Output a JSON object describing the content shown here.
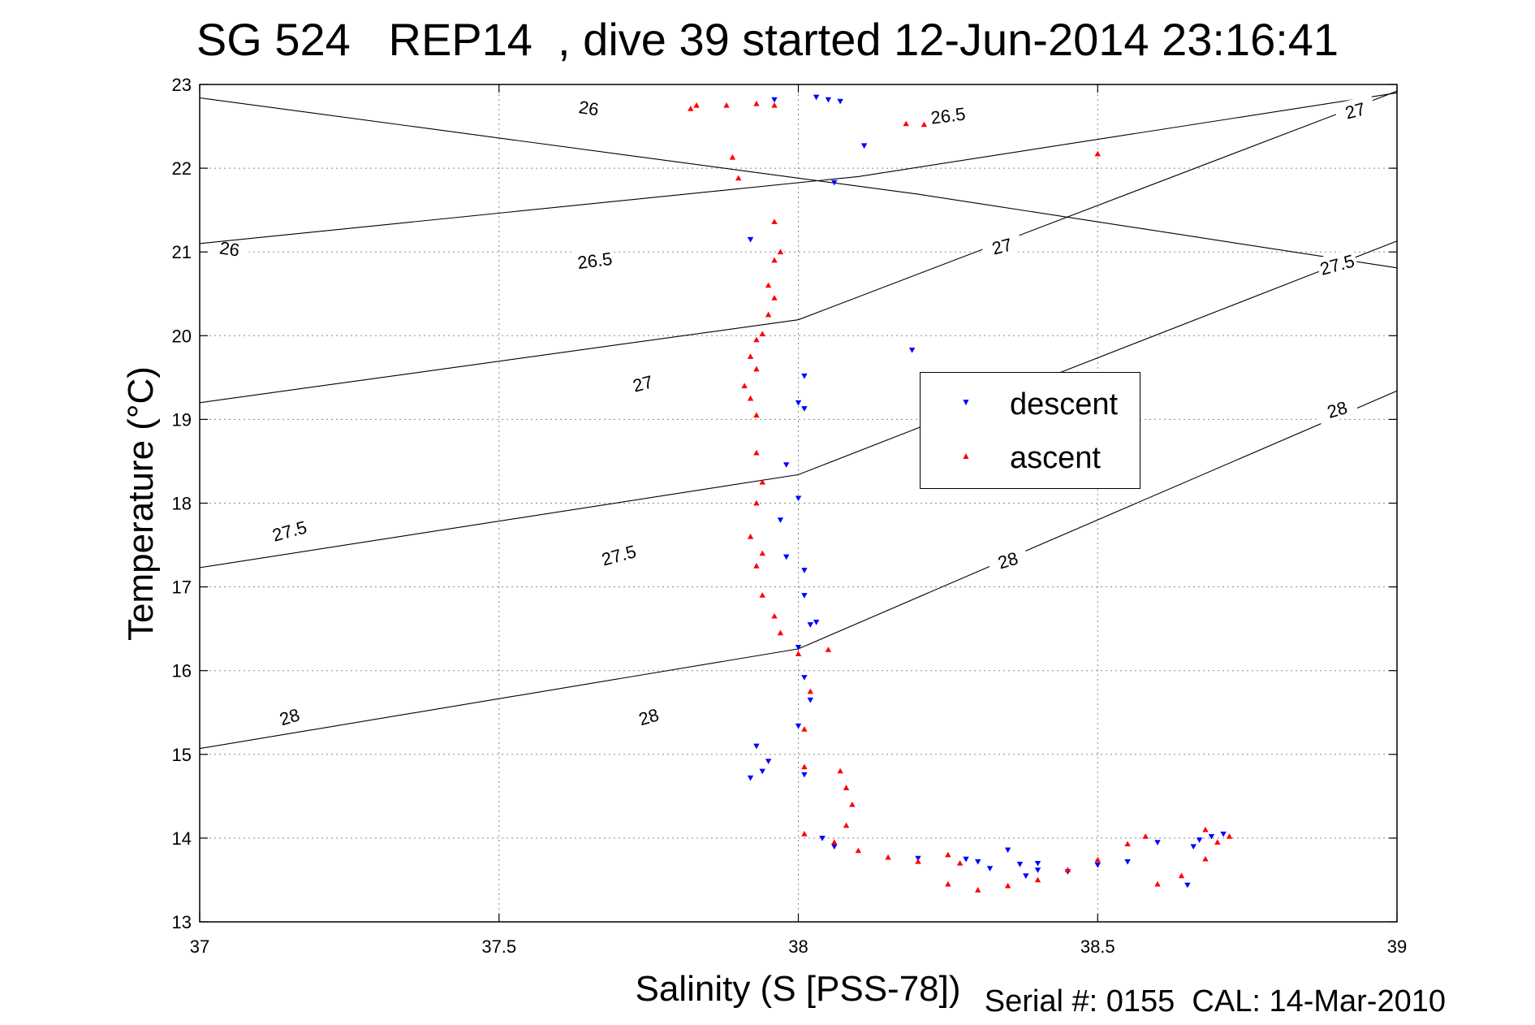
{
  "chart_data": {
    "type": "scatter",
    "title": "SG 524   REP14  , dive 39 started 12-Jun-2014 23:16:41",
    "xlabel": "Salinity (S [PSS-78])",
    "ylabel": "Temperature (°C)",
    "xlim": [
      37,
      39
    ],
    "ylim": [
      13,
      23
    ],
    "xticks": [
      "37",
      "37.5",
      "38",
      "38.5",
      "39"
    ],
    "yticks": [
      "13",
      "14",
      "15",
      "16",
      "17",
      "18",
      "19",
      "20",
      "21",
      "22",
      "23"
    ],
    "grid": true,
    "legend": {
      "position": "center-right",
      "entries": [
        "descent",
        "ascent"
      ]
    },
    "footnote": "Serial #: 0155  CAL: 14-Mar-2010",
    "colors": {
      "descent": "#0000ff",
      "ascent": "#ff0000",
      "contour": "#000000",
      "grid": "#888888"
    },
    "density_contours": [
      {
        "label": "26",
        "line": [
          [
            37,
            22.84
          ],
          [
            38.2,
            21.69
          ],
          [
            39,
            20.81
          ]
        ],
        "label_at": [
          [
            37.05,
            21.04
          ],
          [
            37.65,
            22.72
          ]
        ]
      },
      {
        "label": "26.5",
        "line": [
          [
            37,
            21.1
          ],
          [
            38.1,
            21.9
          ],
          [
            39,
            22.9
          ]
        ],
        "label_at": [
          [
            37.66,
            20.9
          ],
          [
            38.25,
            22.63
          ]
        ]
      },
      {
        "label": "27",
        "line": [
          [
            37,
            19.2
          ],
          [
            38,
            20.19
          ],
          [
            39,
            22.92
          ]
        ],
        "label_at": [
          [
            37.74,
            19.43
          ],
          [
            38.34,
            21.07
          ],
          [
            38.93,
            22.69
          ]
        ]
      },
      {
        "label": "27.5",
        "line": [
          [
            37,
            17.23
          ],
          [
            38,
            18.34
          ],
          [
            39,
            21.13
          ]
        ],
        "label_at": [
          [
            37.15,
            17.67
          ],
          [
            37.7,
            17.38
          ],
          [
            38.9,
            20.85
          ]
        ]
      },
      {
        "label": "28",
        "line": [
          [
            37,
            15.07
          ],
          [
            38,
            16.26
          ],
          [
            39,
            19.34
          ]
        ],
        "label_at": [
          [
            37.15,
            15.45
          ],
          [
            37.75,
            15.45
          ],
          [
            38.35,
            17.32
          ],
          [
            38.9,
            19.12
          ]
        ]
      }
    ],
    "series": [
      {
        "name": "descent",
        "marker": "triangle-down",
        "points": [
          [
            37.96,
            22.82
          ],
          [
            38.03,
            22.85
          ],
          [
            38.05,
            22.82
          ],
          [
            38.07,
            22.8
          ],
          [
            38.11,
            22.27
          ],
          [
            38.06,
            21.83
          ],
          [
            37.92,
            21.15
          ],
          [
            38.19,
            19.83
          ],
          [
            38.01,
            19.52
          ],
          [
            38.0,
            19.2
          ],
          [
            38.01,
            19.13
          ],
          [
            37.98,
            18.46
          ],
          [
            38.0,
            18.06
          ],
          [
            37.97,
            17.8
          ],
          [
            37.98,
            17.36
          ],
          [
            38.01,
            17.2
          ],
          [
            38.01,
            16.9
          ],
          [
            38.02,
            16.55
          ],
          [
            38.03,
            16.58
          ],
          [
            38.0,
            16.28
          ],
          [
            38.01,
            15.92
          ],
          [
            38.02,
            15.65
          ],
          [
            38.0,
            15.34
          ],
          [
            37.93,
            15.1
          ],
          [
            37.95,
            14.92
          ],
          [
            37.92,
            14.72
          ],
          [
            37.94,
            14.8
          ],
          [
            38.01,
            14.76
          ],
          [
            38.04,
            14.0
          ],
          [
            38.06,
            13.9
          ],
          [
            38.2,
            13.76
          ],
          [
            38.28,
            13.75
          ],
          [
            38.35,
            13.86
          ],
          [
            38.37,
            13.69
          ],
          [
            38.45,
            13.6
          ],
          [
            38.5,
            13.68
          ],
          [
            38.3,
            13.72
          ],
          [
            38.38,
            13.55
          ],
          [
            38.4,
            13.7
          ],
          [
            38.32,
            13.64
          ],
          [
            38.65,
            13.44
          ],
          [
            38.66,
            13.9
          ],
          [
            38.67,
            13.98
          ],
          [
            38.69,
            14.02
          ],
          [
            38.71,
            14.05
          ],
          [
            38.6,
            13.95
          ],
          [
            38.55,
            13.72
          ],
          [
            38.4,
            13.62
          ]
        ]
      },
      {
        "name": "ascent",
        "marker": "triangle-up",
        "points": [
          [
            37.82,
            22.71
          ],
          [
            37.83,
            22.75
          ],
          [
            37.88,
            22.75
          ],
          [
            37.93,
            22.77
          ],
          [
            37.96,
            22.75
          ],
          [
            38.18,
            22.53
          ],
          [
            38.21,
            22.52
          ],
          [
            38.5,
            22.17
          ],
          [
            37.89,
            22.13
          ],
          [
            37.9,
            21.88
          ],
          [
            37.96,
            21.36
          ],
          [
            37.97,
            21.0
          ],
          [
            37.96,
            20.9
          ],
          [
            37.95,
            20.6
          ],
          [
            37.96,
            20.45
          ],
          [
            37.95,
            20.25
          ],
          [
            37.94,
            20.02
          ],
          [
            37.93,
            19.95
          ],
          [
            37.92,
            19.75
          ],
          [
            37.93,
            19.6
          ],
          [
            37.91,
            19.4
          ],
          [
            37.92,
            19.25
          ],
          [
            37.93,
            19.05
          ],
          [
            37.93,
            18.6
          ],
          [
            37.94,
            18.25
          ],
          [
            37.93,
            18.0
          ],
          [
            37.92,
            17.6
          ],
          [
            37.94,
            17.4
          ],
          [
            37.93,
            17.25
          ],
          [
            37.94,
            16.9
          ],
          [
            37.96,
            16.65
          ],
          [
            37.97,
            16.45
          ],
          [
            38.0,
            16.2
          ],
          [
            38.05,
            16.25
          ],
          [
            38.02,
            15.75
          ],
          [
            38.01,
            15.3
          ],
          [
            38.01,
            14.85
          ],
          [
            38.07,
            14.8
          ],
          [
            38.08,
            14.6
          ],
          [
            38.09,
            14.4
          ],
          [
            38.08,
            14.15
          ],
          [
            38.01,
            14.05
          ],
          [
            38.06,
            13.95
          ],
          [
            38.1,
            13.85
          ],
          [
            38.15,
            13.77
          ],
          [
            38.2,
            13.72
          ],
          [
            38.25,
            13.8
          ],
          [
            38.27,
            13.7
          ],
          [
            38.25,
            13.45
          ],
          [
            38.3,
            13.38
          ],
          [
            38.35,
            13.43
          ],
          [
            38.4,
            13.5
          ],
          [
            38.45,
            13.62
          ],
          [
            38.5,
            13.74
          ],
          [
            38.55,
            13.93
          ],
          [
            38.58,
            14.02
          ],
          [
            38.6,
            13.45
          ],
          [
            38.64,
            13.55
          ],
          [
            38.68,
            13.75
          ],
          [
            38.7,
            13.95
          ],
          [
            38.68,
            14.1
          ],
          [
            38.72,
            14.02
          ]
        ]
      }
    ]
  }
}
